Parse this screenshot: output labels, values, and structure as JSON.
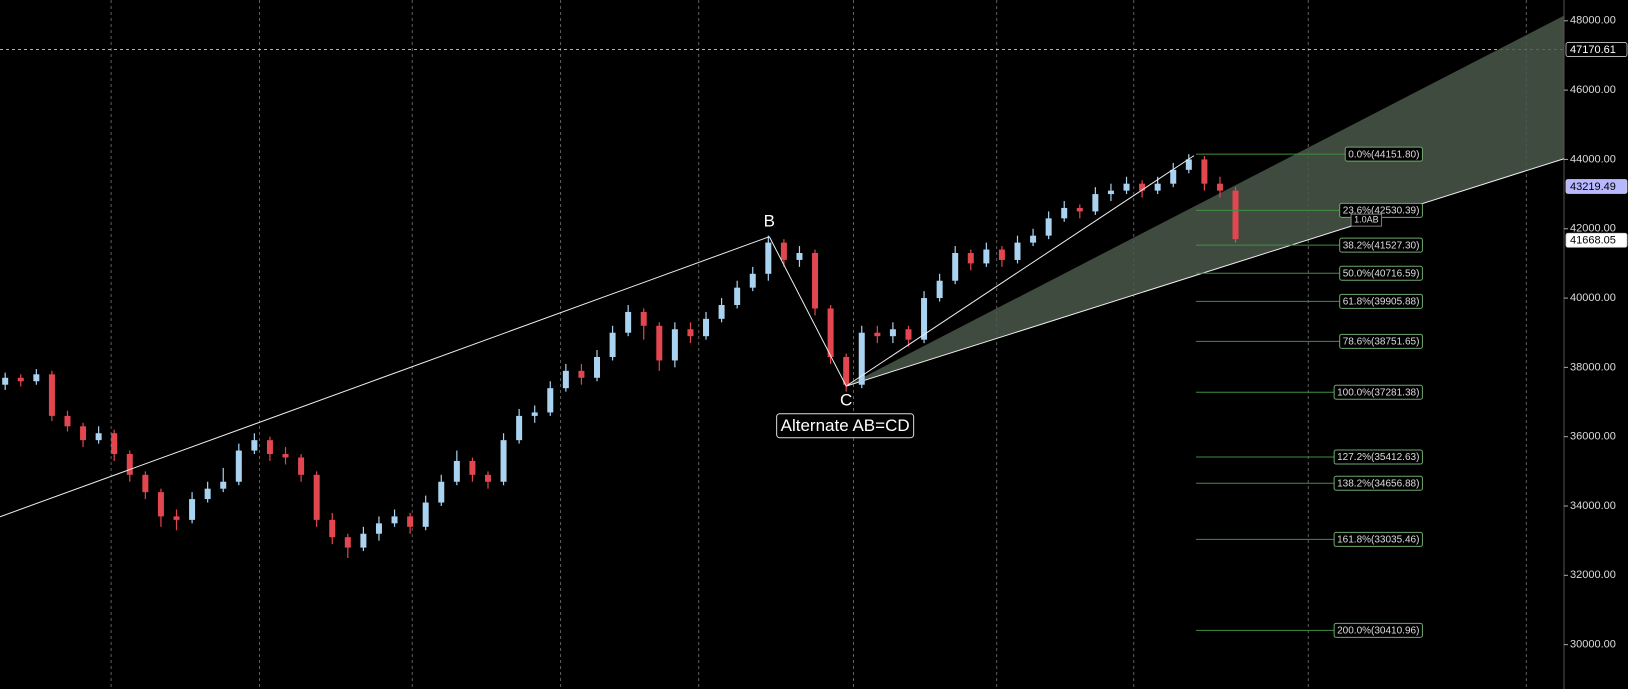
{
  "chart_data": {
    "type": "candlestick",
    "candles": {
      "open": [
        37500,
        37700,
        37600,
        37800,
        36600,
        36300,
        35900,
        36100,
        35500,
        34900,
        34400,
        33700,
        33600,
        34200,
        34500,
        34700,
        35600,
        35900,
        35500,
        35400,
        34900,
        33600,
        33100,
        32800,
        33200,
        33500,
        33700,
        33400,
        34100,
        34700,
        35300,
        34900,
        34700,
        35900,
        36600,
        36700,
        37400,
        37900,
        37700,
        38300,
        39000,
        39600,
        39200,
        38200,
        39100,
        38900,
        39400,
        39800,
        40300,
        40700,
        41600,
        41100,
        41300,
        39700,
        38300,
        37500,
        39000,
        38900,
        39100,
        38800,
        40000,
        40500,
        41300,
        41000,
        41400,
        41100,
        41600,
        41800,
        42300,
        42600,
        42500,
        43000,
        43100,
        43300,
        43100,
        43300,
        43700,
        44000,
        43300,
        43100
      ],
      "high": [
        37850,
        37800,
        37950,
        37900,
        36750,
        36400,
        36300,
        36200,
        35600,
        35000,
        34500,
        33900,
        34400,
        34700,
        35100,
        35800,
        36100,
        36000,
        35700,
        35500,
        35000,
        33800,
        33200,
        33400,
        33700,
        33900,
        33800,
        34300,
        34900,
        35600,
        35400,
        35000,
        36100,
        36800,
        36900,
        37600,
        38100,
        38100,
        38500,
        39200,
        39800,
        39700,
        39300,
        39300,
        39300,
        39600,
        40000,
        40500,
        40900,
        41800,
        41700,
        41500,
        41400,
        39800,
        38400,
        39200,
        39200,
        39300,
        39200,
        40200,
        40700,
        41500,
        41400,
        41600,
        41500,
        41800,
        42000,
        42500,
        42800,
        42700,
        43200,
        43300,
        43500,
        43400,
        43500,
        43900,
        44152,
        44100,
        43500,
        43200
      ],
      "low": [
        37350,
        37450,
        37500,
        36450,
        36150,
        35700,
        35800,
        35300,
        34700,
        34200,
        33400,
        33300,
        33500,
        34100,
        34400,
        34600,
        35500,
        35300,
        35200,
        34700,
        33400,
        32900,
        32500,
        32700,
        33000,
        33400,
        33200,
        33300,
        34000,
        34600,
        34700,
        34500,
        34600,
        35800,
        36400,
        36600,
        37300,
        37500,
        37600,
        38200,
        38900,
        38800,
        37900,
        38000,
        38700,
        38800,
        39300,
        39700,
        40200,
        40500,
        40900,
        40900,
        39500,
        38100,
        37300,
        37400,
        38700,
        38700,
        38600,
        38700,
        39900,
        40400,
        40800,
        40900,
        40900,
        41000,
        41500,
        41700,
        42200,
        42300,
        42400,
        42800,
        43000,
        42900,
        43000,
        43200,
        43600,
        43100,
        42900,
        41600
      ],
      "close": [
        37700,
        37600,
        37800,
        36600,
        36300,
        35900,
        36100,
        35500,
        34900,
        34400,
        33700,
        33600,
        34200,
        34500,
        34700,
        35600,
        35900,
        35500,
        35400,
        34900,
        33600,
        33100,
        32800,
        33200,
        33500,
        33700,
        33400,
        34100,
        34700,
        35300,
        34900,
        34700,
        35900,
        36600,
        36700,
        37400,
        37900,
        37700,
        38300,
        39000,
        39600,
        39200,
        38200,
        39100,
        38900,
        39400,
        39800,
        40300,
        40700,
        41600,
        41100,
        41300,
        39700,
        38300,
        37500,
        39000,
        38900,
        39100,
        38800,
        40000,
        40500,
        41300,
        41000,
        41400,
        41100,
        41600,
        41800,
        42300,
        42600,
        42500,
        43000,
        43100,
        43300,
        43100,
        43300,
        43700,
        44000,
        43300,
        43100,
        41700
      ]
    },
    "up_color": "#a9d3f0",
    "down_color": "#e2464f",
    "ylim": [
      28720,
      48600
    ],
    "yticks": [
      {
        "value": 30000,
        "label": "30000.00"
      },
      {
        "value": 32000,
        "label": "32000.00"
      },
      {
        "value": 34000,
        "label": "34000.00"
      },
      {
        "value": 36000,
        "label": "36000.00"
      },
      {
        "value": 38000,
        "label": "38000.00"
      },
      {
        "value": 40000,
        "label": "40000.00"
      },
      {
        "value": 42000,
        "label": "42000.00"
      },
      {
        "value": 44000,
        "label": "44000.00"
      },
      {
        "value": 46000,
        "label": "46000.00"
      },
      {
        "value": 48000,
        "label": "48000.00"
      }
    ],
    "crosshair": 47170.61,
    "markers": [
      {
        "value": 43219.49,
        "color": "#b8b8ff"
      },
      {
        "value": 41668.05,
        "color": "#ffffff"
      }
    ],
    "fib_levels": [
      {
        "label": "0.0%(44151.80)",
        "value": 44151.8
      },
      {
        "label": "23.6%(42530.39)",
        "value": 42530.39
      },
      {
        "label": "38.2%(41527.30)",
        "value": 41527.3
      },
      {
        "label": "50.0%(40716.59)",
        "value": 40716.59
      },
      {
        "label": "61.8%(39905.88)",
        "value": 39905.88
      },
      {
        "label": "78.6%(38751.65)",
        "value": 38751.65
      },
      {
        "label": "100.0%(37281.38)",
        "value": 37281.38
      },
      {
        "label": "127.2%(35412.63)",
        "value": 35412.63
      },
      {
        "label": "138.2%(34656.88)",
        "value": 34656.88
      },
      {
        "label": "161.8%(33035.46)",
        "value": 33035.46
      },
      {
        "label": "200.0%(30410.96)",
        "value": 30410.96
      }
    ],
    "trendlines": [
      [
        33690,
        41770
      ],
      [
        41770,
        37460
      ],
      [
        37460,
        44110
      ]
    ],
    "fan": [
      37460,
      48150,
      44020
    ],
    "annotations": {
      "b": "B",
      "c": "C",
      "pattern_name": "Alternate AB=CD",
      "ab_ratio": "1.0AB"
    }
  }
}
